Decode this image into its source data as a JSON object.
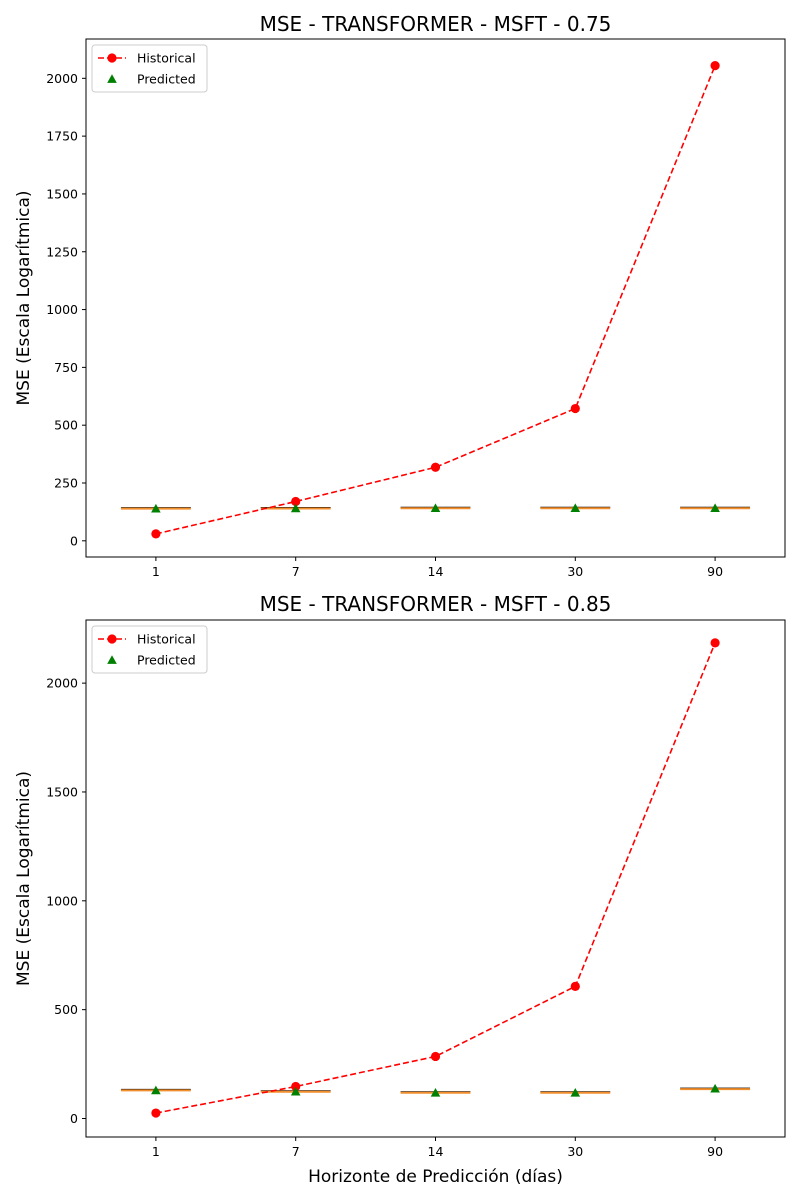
{
  "chart_data": [
    {
      "type": "line",
      "title": "MSE - TRANSFORMER - MSFT - 0.75",
      "xlabel": "",
      "ylabel": "MSE (Escala Logarítmica)",
      "categories": [
        "1",
        "7",
        "14",
        "30",
        "90"
      ],
      "ylim": [
        -70,
        2170
      ],
      "yticks": [
        0,
        250,
        500,
        750,
        1000,
        1250,
        1500,
        1750,
        2000
      ],
      "grid": false,
      "legend_position": "top-left",
      "series": [
        {
          "name": "Historical",
          "style": "dashed line with circle markers",
          "color": "#ff0000",
          "values": [
            30,
            170,
            318,
            572,
            2055
          ]
        },
        {
          "name": "Predicted",
          "style": "triangle markers",
          "color": "#008000",
          "values": [
            139,
            140,
            141,
            141,
            141
          ]
        }
      ],
      "boxes": {
        "median_color": "#f28e2b",
        "values": [
          139,
          140,
          141,
          141,
          141
        ]
      }
    },
    {
      "type": "line",
      "title": "MSE - TRANSFORMER - MSFT - 0.85",
      "xlabel": "Horizonte de Predicción (días)",
      "ylabel": "MSE (Escala Logarítmica)",
      "categories": [
        "1",
        "7",
        "14",
        "30",
        "90"
      ],
      "ylim": [
        -85,
        2290
      ],
      "yticks": [
        0,
        500,
        1000,
        1500,
        2000
      ],
      "grid": false,
      "legend_position": "top-left",
      "series": [
        {
          "name": "Historical",
          "style": "dashed line with circle markers",
          "color": "#ff0000",
          "values": [
            25,
            147,
            285,
            607,
            2185
          ]
        },
        {
          "name": "Predicted",
          "style": "triangle markers",
          "color": "#008000",
          "values": [
            129,
            123,
            118,
            118,
            137
          ]
        }
      ],
      "boxes": {
        "median_color": "#f28e2b",
        "values": [
          129,
          123,
          118,
          118,
          135
        ]
      }
    }
  ]
}
